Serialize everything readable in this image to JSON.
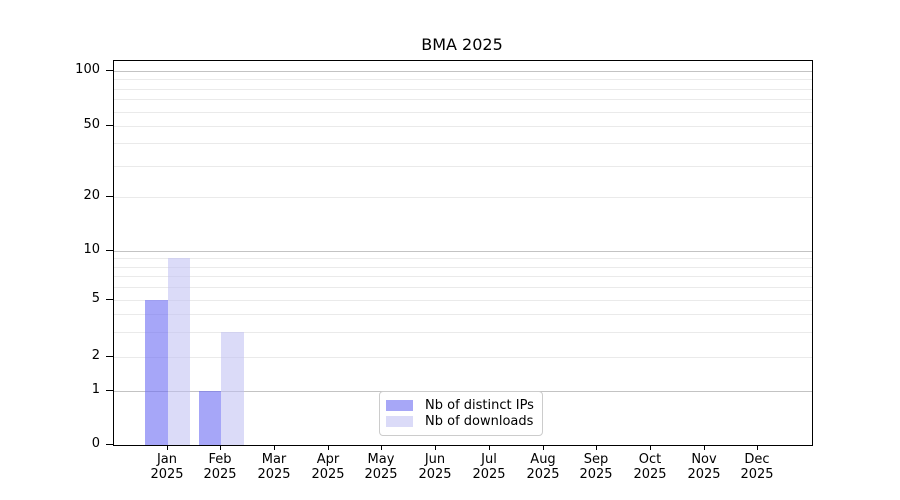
{
  "chart_data": {
    "type": "bar",
    "title": "BMA 2025",
    "year": "2025",
    "months": [
      "Jan",
      "Feb",
      "Mar",
      "Apr",
      "May",
      "Jun",
      "Jul",
      "Aug",
      "Sep",
      "Oct",
      "Nov",
      "Dec"
    ],
    "xlabel": "",
    "ylabel": "",
    "series": [
      {
        "name": "Nb of distinct IPs",
        "color": "#a7a7f7",
        "fill": "rgba(107,107,243,0.6)",
        "values": [
          5,
          1,
          0,
          0,
          0,
          0,
          0,
          0,
          0,
          0,
          0,
          0
        ]
      },
      {
        "name": "Nb of downloads",
        "color": "#dbdbf8",
        "fill": "rgba(190,190,243,0.55)",
        "values": [
          9,
          3,
          0,
          0,
          0,
          0,
          0,
          0,
          0,
          0,
          0,
          0
        ]
      }
    ],
    "yticks": [
      0,
      1,
      2,
      5,
      10,
      20,
      50,
      100
    ],
    "major_gridlines": [
      1,
      10,
      100
    ],
    "minor_gridlines": [
      2,
      3,
      4,
      5,
      6,
      7,
      8,
      9,
      20,
      30,
      40,
      50,
      60,
      70,
      80,
      90
    ],
    "yscale": "log-like above 1, linear between 0 and 1",
    "ylim": [
      0,
      115
    ],
    "grid": true,
    "legend_position": "lower center"
  },
  "colors": {
    "axis": "#000000",
    "text": "#000000",
    "major_grid": "#c3c3c3",
    "minor_grid": "#eaeaea",
    "legend_border": "#cccccc",
    "background": "#ffffff"
  }
}
